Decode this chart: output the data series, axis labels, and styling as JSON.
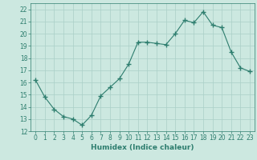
{
  "x": [
    0,
    1,
    2,
    3,
    4,
    5,
    6,
    7,
    8,
    9,
    10,
    11,
    12,
    13,
    14,
    15,
    16,
    17,
    18,
    19,
    20,
    21,
    22,
    23
  ],
  "y": [
    16.2,
    14.8,
    13.8,
    13.2,
    13.0,
    12.5,
    13.3,
    14.9,
    15.6,
    16.3,
    17.5,
    19.3,
    19.3,
    19.2,
    19.1,
    20.0,
    21.1,
    20.9,
    21.8,
    20.7,
    20.5,
    18.5,
    17.2,
    16.9
  ],
  "line_color": "#2d7d6e",
  "marker": "+",
  "marker_size": 4,
  "bg_color": "#cce8e0",
  "grid_color": "#aacfc7",
  "xlabel": "Humidex (Indice chaleur)",
  "xlim": [
    -0.5,
    23.5
  ],
  "ylim": [
    12,
    22.5
  ],
  "yticks": [
    12,
    13,
    14,
    15,
    16,
    17,
    18,
    19,
    20,
    21,
    22
  ],
  "xticks": [
    0,
    1,
    2,
    3,
    4,
    5,
    6,
    7,
    8,
    9,
    10,
    11,
    12,
    13,
    14,
    15,
    16,
    17,
    18,
    19,
    20,
    21,
    22,
    23
  ],
  "tick_color": "#2d7d6e",
  "tick_fontsize": 5.5,
  "xlabel_fontsize": 6.5,
  "xlabel_fontweight": "bold"
}
